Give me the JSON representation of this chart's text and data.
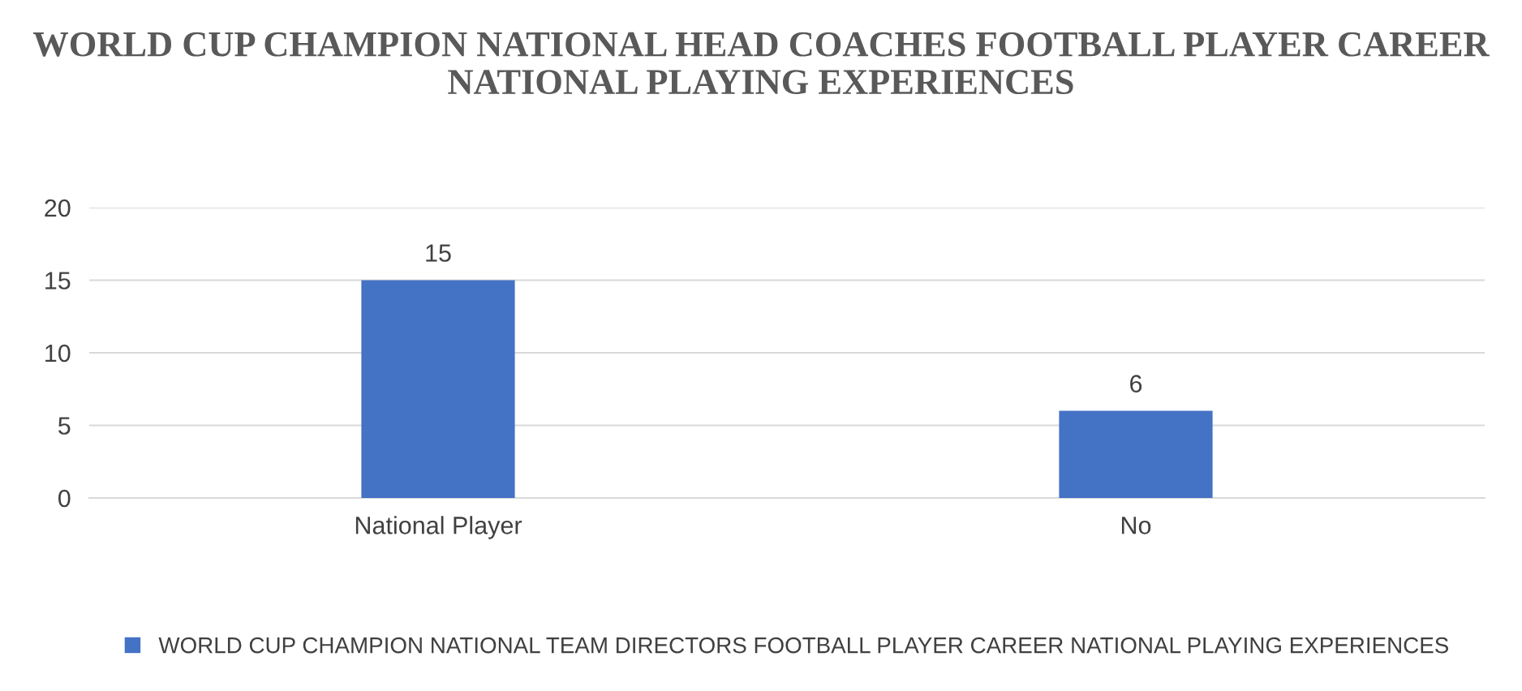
{
  "chart_data": {
    "type": "bar",
    "title": "WORLD CUP CHAMPION NATIONAL HEAD COACHES FOOTBALL PLAYER CAREER NATIONAL PLAYING EXPERIENCES",
    "categories": [
      "National Player",
      "No"
    ],
    "series": [
      {
        "name": "WORLD CUP CHAMPION NATIONAL TEAM DIRECTORS FOOTBALL PLAYER CAREER NATIONAL PLAYING EXPERIENCES",
        "color": "#4472c4",
        "values": [
          15,
          6
        ]
      }
    ],
    "ylim": [
      0,
      20
    ],
    "yticks": [
      0,
      5,
      10,
      15,
      20
    ],
    "grid": "y",
    "legend": "bottom",
    "data_labels": true
  }
}
